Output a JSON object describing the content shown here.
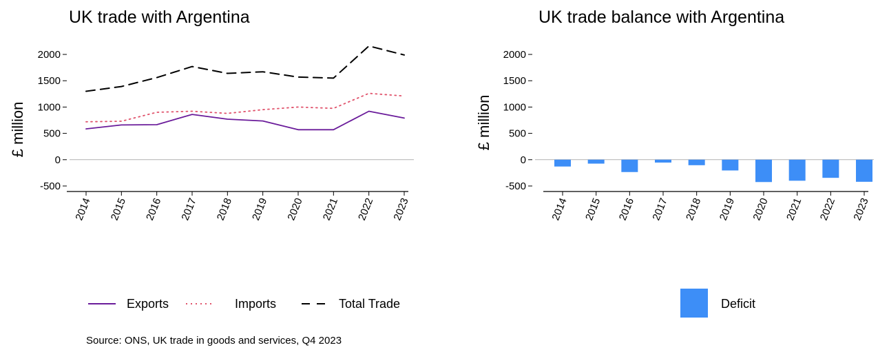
{
  "chart_data": [
    {
      "type": "line",
      "title": "UK trade with Argentina",
      "ylabel": "£ million",
      "xlabel": "",
      "ylim": [
        -500,
        2000
      ],
      "yticks": [
        -500,
        0,
        500,
        1000,
        1500,
        2000
      ],
      "categories": [
        "2014",
        "2015",
        "2016",
        "2017",
        "2018",
        "2019",
        "2020",
        "2021",
        "2022",
        "2023"
      ],
      "series": [
        {
          "name": "Exports",
          "color": "#6a1b9a",
          "style": "solid",
          "values": [
            585,
            660,
            665,
            860,
            770,
            735,
            570,
            570,
            920,
            790
          ]
        },
        {
          "name": "Imports",
          "color": "#e0526b",
          "style": "dotted",
          "values": [
            720,
            730,
            900,
            920,
            880,
            950,
            1000,
            975,
            1260,
            1210
          ]
        },
        {
          "name": "Total Trade",
          "color": "#000000",
          "style": "dashed",
          "values": [
            1300,
            1390,
            1560,
            1770,
            1640,
            1670,
            1570,
            1550,
            2160,
            1990
          ]
        }
      ],
      "grid": false,
      "legend_position": "bottom",
      "source": "Source: ONS, UK trade in goods and services, Q4 2023"
    },
    {
      "type": "bar",
      "title": "UK trade balance with Argentina",
      "ylabel": "£ million",
      "xlabel": "",
      "ylim": [
        -500,
        2000
      ],
      "yticks": [
        -500,
        0,
        500,
        1000,
        1500,
        2000
      ],
      "categories": [
        "2014",
        "2015",
        "2016",
        "2017",
        "2018",
        "2019",
        "2020",
        "2021",
        "2022",
        "2023"
      ],
      "series": [
        {
          "name": "Deficit",
          "color": "#3d8ef7",
          "values": [
            -130,
            -75,
            -235,
            -55,
            -105,
            -205,
            -425,
            -400,
            -345,
            -420
          ]
        }
      ],
      "grid": false,
      "legend_position": "bottom"
    }
  ]
}
